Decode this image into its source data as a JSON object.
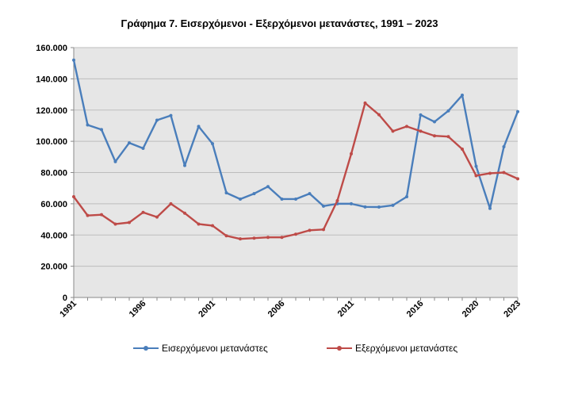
{
  "chart_data": {
    "type": "line",
    "title": "Γράφημα 7. Εισερχόμενοι - Εξερχόμενοι μετανάστες, 1991 – 2023",
    "ylim": [
      0,
      160000
    ],
    "yticks": [
      0,
      20000,
      40000,
      60000,
      80000,
      100000,
      120000,
      140000,
      160000
    ],
    "ytick_labels": [
      "0",
      "20.000",
      "40.000",
      "60.000",
      "80.000",
      "100.000",
      "120.000",
      "140.000",
      "160.000"
    ],
    "xlim": [
      1991,
      2023
    ],
    "xticks": [
      1991,
      1996,
      2001,
      2006,
      2011,
      2016,
      2020,
      2023
    ],
    "xtick_labels": [
      "1991",
      "1996",
      "2001",
      "2006",
      "2011",
      "2016",
      "2020",
      "2023"
    ],
    "grid": "horizontal",
    "legend_position": "bottom",
    "x": [
      1991,
      1992,
      1993,
      1994,
      1995,
      1996,
      1997,
      1998,
      1999,
      2000,
      2001,
      2002,
      2003,
      2004,
      2005,
      2006,
      2007,
      2008,
      2009,
      2010,
      2011,
      2012,
      2013,
      2014,
      2015,
      2016,
      2017,
      2018,
      2019,
      2020,
      2021,
      2022,
      2023
    ],
    "series": [
      {
        "name": "Εισερχόμενοι μετανάστες",
        "color": "#4a7ebb",
        "values": [
          152000,
          110500,
          107500,
          87000,
          99000,
          95500,
          113500,
          116500,
          84500,
          109500,
          98500,
          67000,
          63000,
          66500,
          71000,
          63000,
          63000,
          66500,
          58500,
          60000,
          60000,
          58000,
          57900,
          59000,
          64500,
          116900,
          112500,
          119500,
          129500,
          84000,
          57000,
          96500,
          119000
        ]
      },
      {
        "name": "Εξερχόμενοι μετανάστες",
        "color": "#be4b48",
        "values": [
          64500,
          52500,
          53000,
          47000,
          48000,
          54500,
          51500,
          60000,
          54000,
          47000,
          46000,
          39500,
          37500,
          38000,
          38500,
          38500,
          40500,
          43000,
          43500,
          62000,
          92000,
          124500,
          117000,
          106500,
          109500,
          106500,
          103500,
          103000,
          95000,
          78000,
          79500,
          80000,
          76000
        ]
      }
    ]
  }
}
